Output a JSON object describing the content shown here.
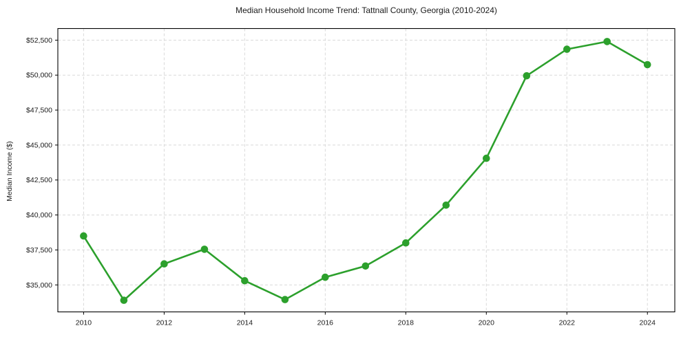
{
  "chart_data": {
    "type": "line",
    "title": "Median Household Income Trend: Tattnall County, Georgia (2010-2024)",
    "xlabel": "",
    "ylabel": "Median Income ($)",
    "x": [
      2010,
      2011,
      2012,
      2013,
      2014,
      2015,
      2016,
      2017,
      2018,
      2019,
      2020,
      2021,
      2022,
      2023,
      2024
    ],
    "values": [
      38500,
      33900,
      36500,
      37550,
      35300,
      33950,
      35550,
      36350,
      38000,
      40700,
      44050,
      49950,
      51850,
      52400,
      50750
    ],
    "x_ticks": [
      2010,
      2012,
      2014,
      2016,
      2018,
      2020,
      2022,
      2024
    ],
    "x_tick_labels": [
      "2010",
      "2012",
      "2014",
      "2016",
      "2018",
      "2020",
      "2022",
      "2024"
    ],
    "y_ticks": [
      35000,
      37500,
      40000,
      42500,
      45000,
      47500,
      50000,
      52500
    ],
    "y_tick_labels": [
      "$35,000",
      "$37,500",
      "$40,000",
      "$42,500",
      "$45,000",
      "$47,500",
      "$50,000",
      "$52,500"
    ],
    "xlim": [
      2009.36,
      2024.68
    ],
    "ylim": [
      33070,
      53330
    ],
    "grid": true,
    "grid_style": "dashed",
    "legend": "none",
    "line_color": "#2ca02c",
    "marker_color": "#2ca02c",
    "marker": "circle",
    "grid_color": "#d9d9d9",
    "axis_color": "#000000",
    "text_color": "#1a1a1a",
    "background": "#ffffff"
  }
}
